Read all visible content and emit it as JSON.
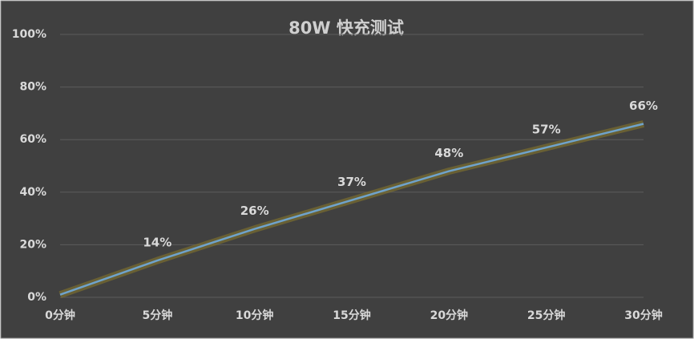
{
  "chart_data": {
    "type": "line",
    "title": "80W 快充测试",
    "categories": [
      "0分钟",
      "5分钟",
      "10分钟",
      "15分钟",
      "20分钟",
      "25分钟",
      "30分钟"
    ],
    "series": [
      {
        "name": "80W 快充测试",
        "color": "#6fa3cc",
        "values": [
          1,
          14,
          26,
          37,
          48,
          57,
          66
        ],
        "value_labels": [
          null,
          "14%",
          "26%",
          "37%",
          "48%",
          "57%",
          "66%"
        ]
      }
    ],
    "ylim": [
      0,
      100
    ],
    "yticks": [
      {
        "value": 0,
        "label": "0%"
      },
      {
        "value": 20,
        "label": "20%"
      },
      {
        "value": 40,
        "label": "40%"
      },
      {
        "value": 60,
        "label": "60%"
      },
      {
        "value": 80,
        "label": "80%"
      },
      {
        "value": 100,
        "label": "100%"
      }
    ],
    "grid": true
  }
}
